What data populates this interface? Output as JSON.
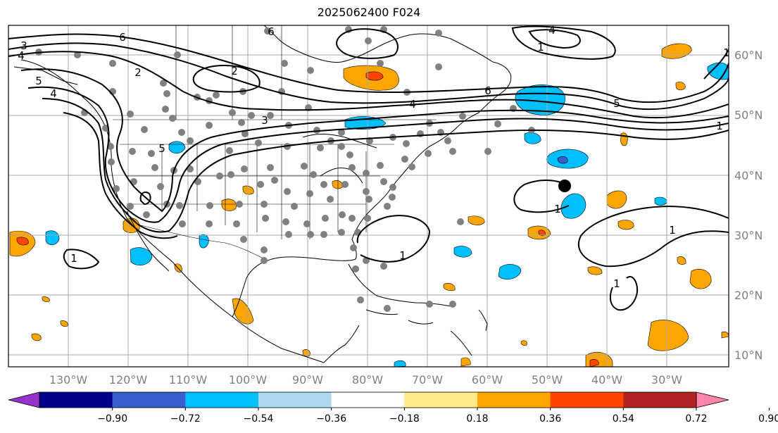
{
  "title": "2025062400 F024",
  "lat_labels": [
    "60°N",
    "50°N",
    "40°N",
    "30°N",
    "20°N",
    "10°N"
  ],
  "lon_labels": [
    "130°W",
    "120°W",
    "110°W",
    "100°W",
    "90°W",
    "80°W",
    "70°W",
    "60°W",
    "50°W",
    "40°W",
    "30°W"
  ],
  "colorbar": {
    "tick_labels": [
      "−0.90",
      "−0.72",
      "−0.54",
      "−0.36",
      "−0.18",
      "0.18",
      "0.36",
      "0.54",
      "0.72",
      "0.90"
    ],
    "colors": [
      "#9932cc",
      "#00008b",
      "#3a5fcd",
      "#00bfff",
      "#add8f0",
      "#ffffff",
      "#ffe98a",
      "#ffa500",
      "#ff4500",
      "#b22222",
      "#ff85a8"
    ]
  },
  "contour_labels": [
    "3",
    "4",
    "5",
    "6",
    "2",
    "4",
    "5",
    "6",
    "6",
    "5",
    "4",
    "4",
    "3",
    "2",
    "1",
    "1",
    "1",
    "1",
    "1",
    "1",
    "1",
    "1"
  ],
  "field_colors": {
    "negative": "#00bfff",
    "negative_light": "#add8f0",
    "negative_strong": "#3a5fcd",
    "positive": "#ffa500",
    "positive_strong": "#ff4500",
    "coast": "#000000",
    "contour": "#000000",
    "stations": "#808080",
    "grid": "#a9a9a9"
  }
}
